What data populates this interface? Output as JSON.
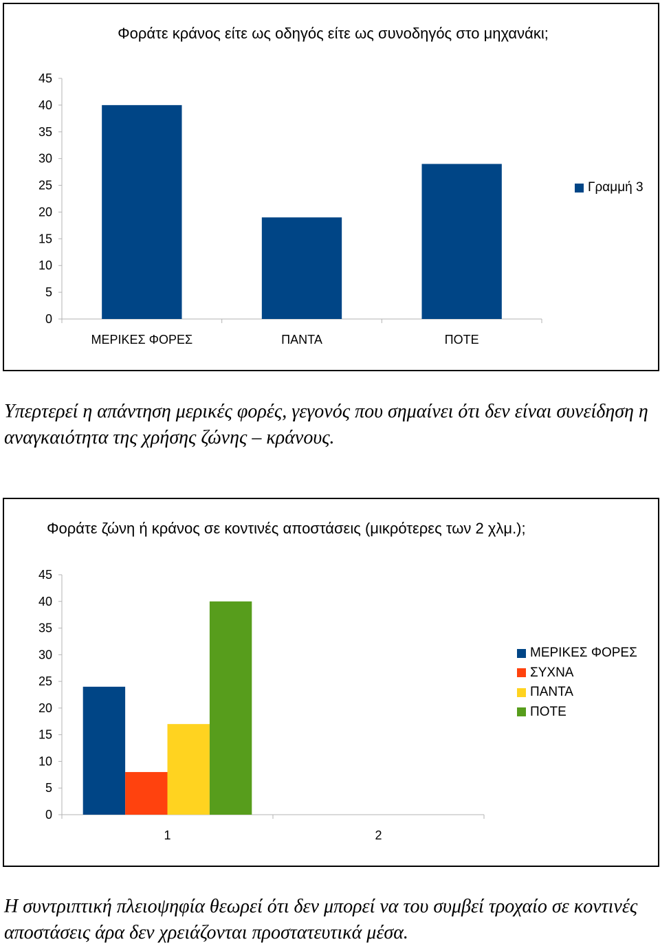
{
  "chart_data": [
    {
      "type": "bar",
      "title": "Φοράτε κράνος είτε ως οδηγός είτε ως συνοδηγός στο μηχανάκι;",
      "categories": [
        "ΜΕΡΙΚΕΣ ΦΟΡΕΣ",
        "ΠΑΝΤΑ",
        "ΠΟΤΕ"
      ],
      "series": [
        {
          "name": "Γραμμή 3",
          "values": [
            40,
            19,
            29
          ],
          "color": "#004586"
        }
      ],
      "ylim": [
        0,
        45
      ],
      "yticks": [
        0,
        5,
        10,
        15,
        20,
        25,
        30,
        35,
        40,
        45
      ],
      "legend": "right",
      "grid": false
    },
    {
      "type": "bar",
      "title": "Φοράτε ζώνη ή κράνος σε κοντινές αποστάσεις (μικρότερες των 2 χλμ.);",
      "categories": [
        "1",
        "2"
      ],
      "series": [
        {
          "name": "ΜΕΡΙΚΕΣ ΦΟΡΕΣ",
          "values": [
            24,
            null
          ],
          "color": "#004586"
        },
        {
          "name": "ΣΥΧΝΑ",
          "values": [
            8,
            null
          ],
          "color": "#ff420e"
        },
        {
          "name": "ΠΑΝΤΑ",
          "values": [
            17,
            null
          ],
          "color": "#ffd320"
        },
        {
          "name": "ΠΟΤΕ",
          "values": [
            40,
            null
          ],
          "color": "#579d1c"
        }
      ],
      "ylim": [
        0,
        45
      ],
      "yticks": [
        0,
        5,
        10,
        15,
        20,
        25,
        30,
        35,
        40,
        45
      ],
      "legend": "right",
      "grid": false
    }
  ],
  "captions": [
    "Υπερτερεί η απάντηση μερικές φορές, γεγονός που σημαίνει ότι δεν είναι συνείδηση η αναγκαιότητα της χρήσης ζώνης – κράνους.",
    "Η συντριπτική πλειοψηφία θεωρεί ότι δεν μπορεί να του συμβεί τροχαίο σε κοντινές αποστάσεις άρα δεν χρειάζονται προστατευτικά μέσα."
  ]
}
